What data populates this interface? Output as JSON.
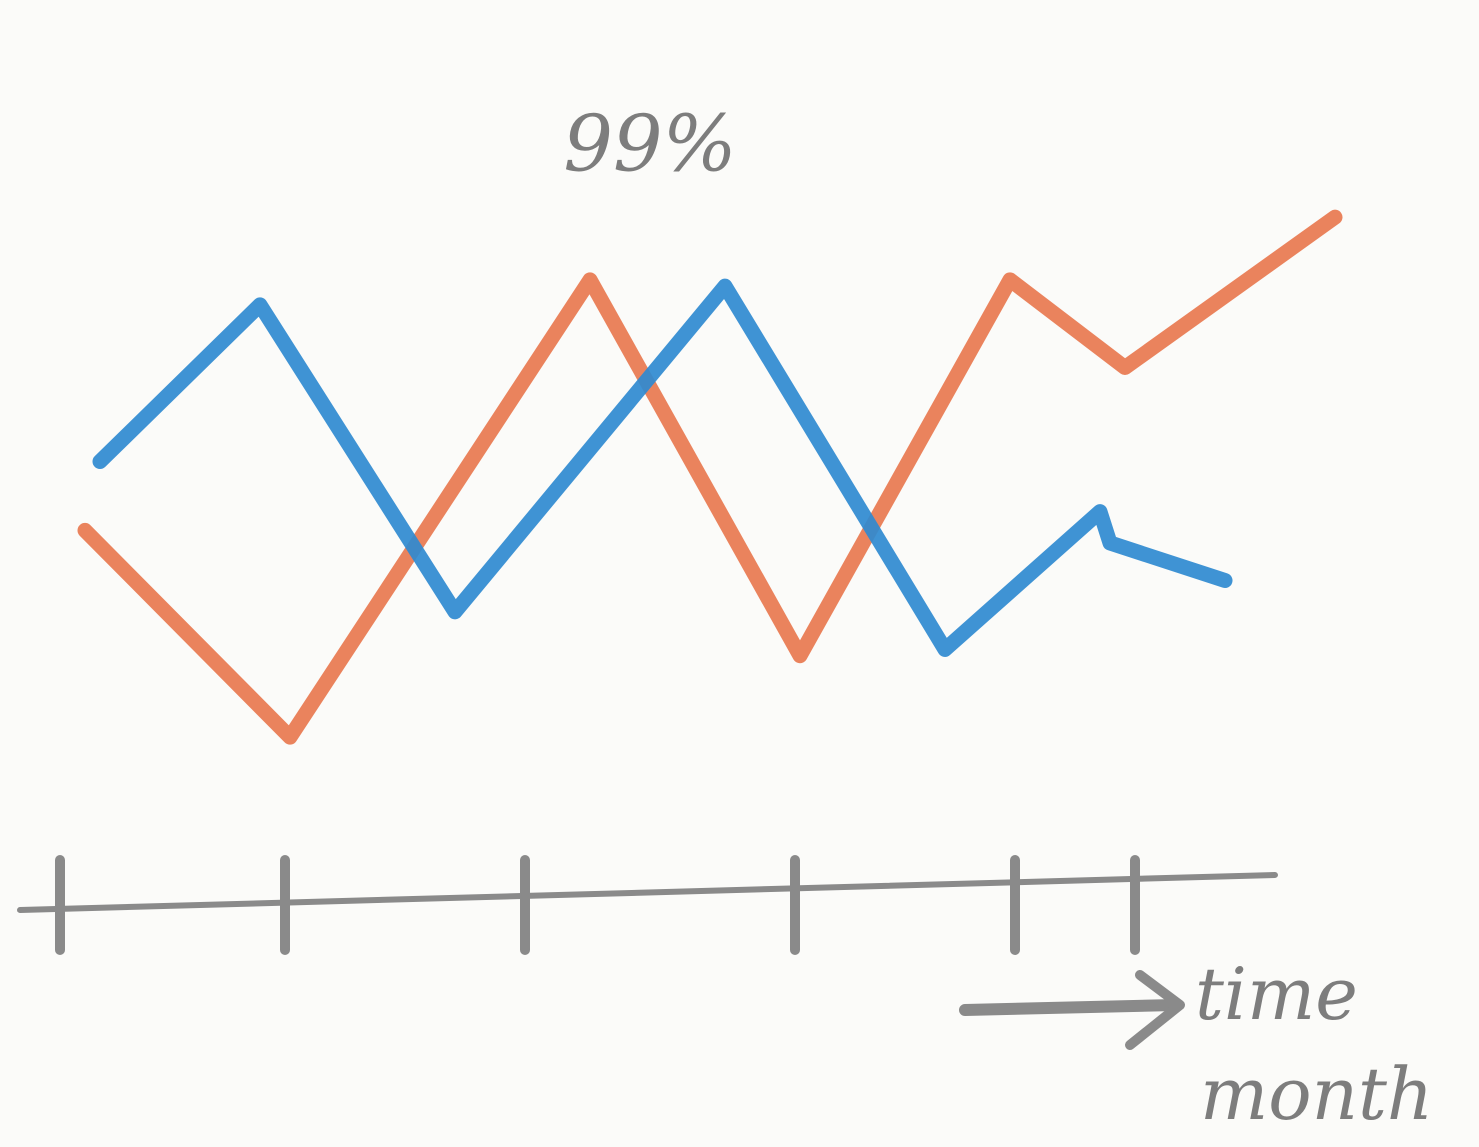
{
  "chart_data": {
    "type": "line",
    "annotation": "99%",
    "xlabel": [
      "time",
      "month"
    ],
    "xlim": [
      0,
      14
    ],
    "ylim": [
      0,
      140
    ],
    "xticks": [
      0.2,
      2.45,
      4.85,
      7.55,
      9.75,
      10.95
    ],
    "axis_color": "#8a8a8a",
    "series": [
      {
        "color": "#e8784f",
        "x": [
          0.45,
          2.5,
          5.5,
          7.6,
          9.7,
          10.85,
          12.95
        ],
        "values": [
          59,
          26,
          99,
          39,
          99,
          85,
          109
        ]
      },
      {
        "color": "#2f8ad0",
        "x": [
          0.6,
          2.2,
          4.15,
          6.85,
          9.05,
          10.6,
          10.7,
          11.85
        ],
        "values": [
          70,
          95,
          46,
          98,
          40,
          62,
          57,
          51
        ]
      }
    ]
  }
}
